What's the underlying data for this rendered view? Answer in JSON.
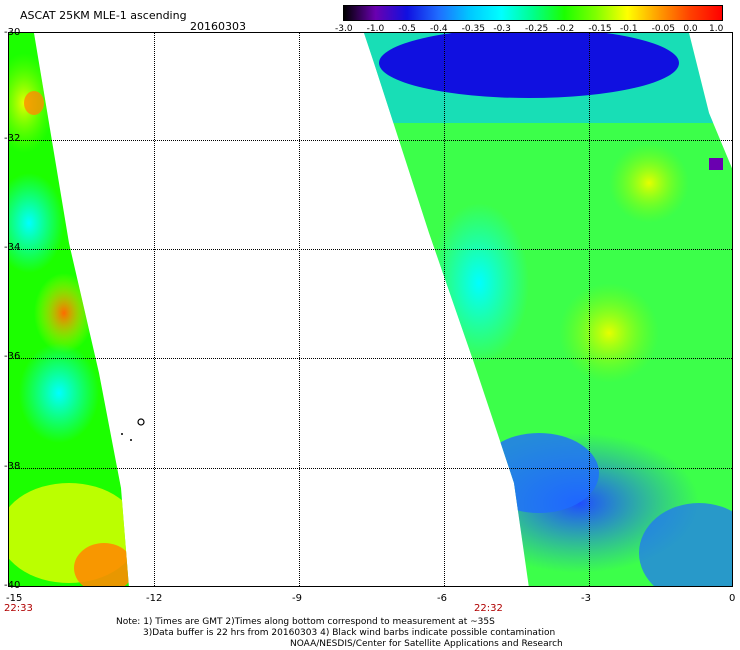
{
  "header": {
    "title": "ASCAT 25KM MLE-1 ascending",
    "date": "20160303"
  },
  "colorbar": {
    "labels": [
      "-3.0",
      "-1.0",
      "-0.5",
      "-0.4",
      "-0.35",
      "-0.3",
      "-0.25",
      "-0.2",
      "-0.15",
      "-0.1",
      "-0.05",
      "0.0",
      "1.0"
    ],
    "colors": [
      "#000000",
      "#6a00b0",
      "#1010e0",
      "#1f6dff",
      "#00c8ff",
      "#00ffff",
      "#00ff8c",
      "#1cff00",
      "#80ff00",
      "#ffff00",
      "#ff9c00",
      "#ff4000",
      "#ff0000"
    ]
  },
  "axes": {
    "lat_labels": [
      "-30",
      "-32",
      "-34",
      "-36",
      "-38",
      "-40"
    ],
    "lon_labels": [
      "-15",
      "-12",
      "-9",
      "-6",
      "-3",
      "0"
    ]
  },
  "passes": {
    "left_time": "22:33",
    "right_time": "22:32"
  },
  "notes": {
    "line1": "Note: 1) Times are GMT 2)Times along bottom correspond to measurement at ~35S",
    "line2": "3)Data buffer is 22 hrs from 20160303 4) Black wind barbs indicate possible contamination",
    "line3": "NOAA/NESDIS/Center for Satellite Applications and Research"
  }
}
